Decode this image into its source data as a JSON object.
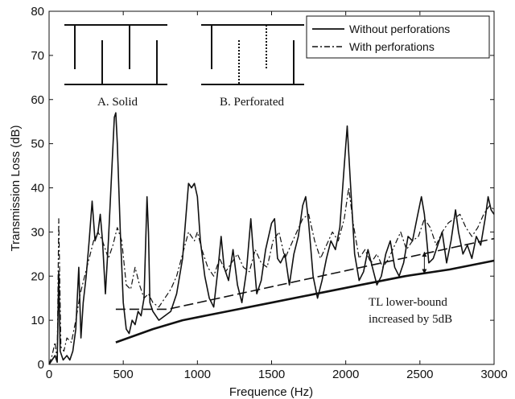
{
  "chart_data": {
    "type": "line",
    "title": "",
    "xlabel": "Frequence (Hz)",
    "ylabel": "Transmission Loss (dB)",
    "xlim": [
      0,
      3000
    ],
    "ylim": [
      0,
      80
    ],
    "xticks": [
      0,
      500,
      1000,
      1500,
      2000,
      2500,
      3000
    ],
    "yticks": [
      0,
      10,
      20,
      30,
      40,
      50,
      60,
      70,
      80
    ],
    "grid": false,
    "legend_position": "top-right",
    "series": [
      {
        "name": "Without perforations",
        "style": "solid",
        "color": "#111111",
        "x": [
          0,
          20,
          40,
          55,
          65,
          75,
          95,
          120,
          140,
          160,
          180,
          200,
          215,
          230,
          250,
          270,
          290,
          310,
          330,
          345,
          360,
          380,
          400,
          420,
          440,
          450,
          460,
          480,
          500,
          520,
          540,
          560,
          580,
          600,
          620,
          640,
          660,
          670,
          680,
          700,
          740,
          780,
          820,
          860,
          900,
          940,
          960,
          980,
          1000,
          1020,
          1050,
          1080,
          1110,
          1140,
          1160,
          1180,
          1210,
          1240,
          1270,
          1300,
          1330,
          1360,
          1380,
          1400,
          1430,
          1460,
          1500,
          1520,
          1540,
          1560,
          1590,
          1620,
          1650,
          1680,
          1710,
          1730,
          1750,
          1780,
          1810,
          1840,
          1870,
          1900,
          1930,
          1960,
          1990,
          2010,
          2030,
          2060,
          2090,
          2120,
          2150,
          2180,
          2210,
          2240,
          2270,
          2300,
          2330,
          2360,
          2390,
          2420,
          2450,
          2480,
          2510,
          2530,
          2560,
          2590,
          2620,
          2650,
          2680,
          2710,
          2740,
          2760,
          2790,
          2820,
          2850,
          2880,
          2910,
          2940,
          2960,
          2980,
          3000
        ],
        "y": [
          0,
          1,
          2,
          0.5,
          21,
          3,
          1,
          2,
          1,
          3,
          8,
          22,
          6,
          14,
          20,
          28,
          37,
          28,
          30,
          34,
          28,
          16,
          28,
          42,
          56,
          57,
          50,
          30,
          14,
          8,
          7,
          10,
          9,
          12,
          11,
          15,
          38,
          30,
          14,
          12,
          10,
          11,
          12,
          16,
          24,
          41,
          40,
          41,
          38,
          28,
          20,
          15,
          13,
          22,
          29,
          22,
          19,
          26,
          18,
          14,
          21,
          33,
          24,
          16,
          19,
          26,
          32,
          33,
          24,
          23,
          25,
          18,
          25,
          29,
          36,
          38,
          32,
          20,
          15,
          19,
          24,
          28,
          26,
          31,
          45,
          54,
          42,
          25,
          19,
          21,
          26,
          22,
          18,
          20,
          25,
          28,
          22,
          20,
          23,
          29,
          28,
          33,
          38,
          34,
          23,
          24,
          27,
          30,
          23,
          28,
          35,
          30,
          25,
          27,
          24,
          29,
          27,
          33,
          38,
          35,
          34
        ]
      },
      {
        "name": "With perforations",
        "style": "dash-dot",
        "color": "#111111",
        "x": [
          0,
          20,
          40,
          55,
          65,
          80,
          100,
          120,
          150,
          180,
          210,
          240,
          270,
          300,
          330,
          360,
          400,
          430,
          460,
          490,
          520,
          550,
          580,
          610,
          640,
          670,
          700,
          740,
          780,
          820,
          860,
          900,
          940,
          980,
          1000,
          1030,
          1070,
          1110,
          1150,
          1190,
          1230,
          1270,
          1310,
          1350,
          1390,
          1430,
          1470,
          1510,
          1550,
          1590,
          1630,
          1670,
          1710,
          1750,
          1790,
          1830,
          1870,
          1910,
          1950,
          1990,
          2020,
          2050,
          2090,
          2130,
          2170,
          2210,
          2250,
          2290,
          2330,
          2370,
          2410,
          2450,
          2490,
          2530,
          2570,
          2610,
          2650,
          2690,
          2730,
          2770,
          2810,
          2850,
          2890,
          2930,
          2970,
          3000
        ],
        "y": [
          0,
          2,
          5,
          1,
          33,
          4,
          3,
          6,
          5,
          10,
          16,
          20,
          24,
          28,
          30,
          28,
          24,
          27,
          31,
          28,
          18,
          17,
          22,
          18,
          15,
          16,
          14,
          13,
          15,
          17,
          20,
          25,
          30,
          28,
          30,
          26,
          22,
          20,
          24,
          21,
          23,
          25,
          22,
          21,
          26,
          23,
          22,
          28,
          30,
          24,
          27,
          30,
          33,
          34,
          28,
          24,
          27,
          30,
          28,
          33,
          40,
          32,
          24,
          26,
          23,
          25,
          22,
          24,
          27,
          30,
          26,
          28,
          29,
          33,
          31,
          27,
          30,
          32,
          33,
          34,
          31,
          29,
          31,
          34,
          36,
          35
        ]
      },
      {
        "name": "",
        "style": "dashed",
        "color": "#111111",
        "x": [
          450,
          800,
          3000
        ],
        "y": [
          12.5,
          12.5,
          28.5
        ]
      },
      {
        "name": "",
        "style": "solid-thick",
        "color": "#111111",
        "x": [
          450,
          700,
          900,
          1200,
          1500,
          1800,
          2100,
          2400,
          2700,
          3000
        ],
        "y": [
          5,
          8,
          10,
          12,
          14,
          16,
          18,
          20,
          21.5,
          23.5
        ]
      }
    ],
    "annotations": [
      {
        "text": "TL lower-bound",
        "x": 2250,
        "y": 13
      },
      {
        "text": "increased by 5dB",
        "x": 2250,
        "y": 9
      },
      {
        "arrow": "double",
        "x": 2530,
        "y_from": 20.5,
        "y_to": 25.5
      }
    ],
    "insets": [
      {
        "label": "A. Solid"
      },
      {
        "label": "B. Perforated"
      }
    ]
  }
}
